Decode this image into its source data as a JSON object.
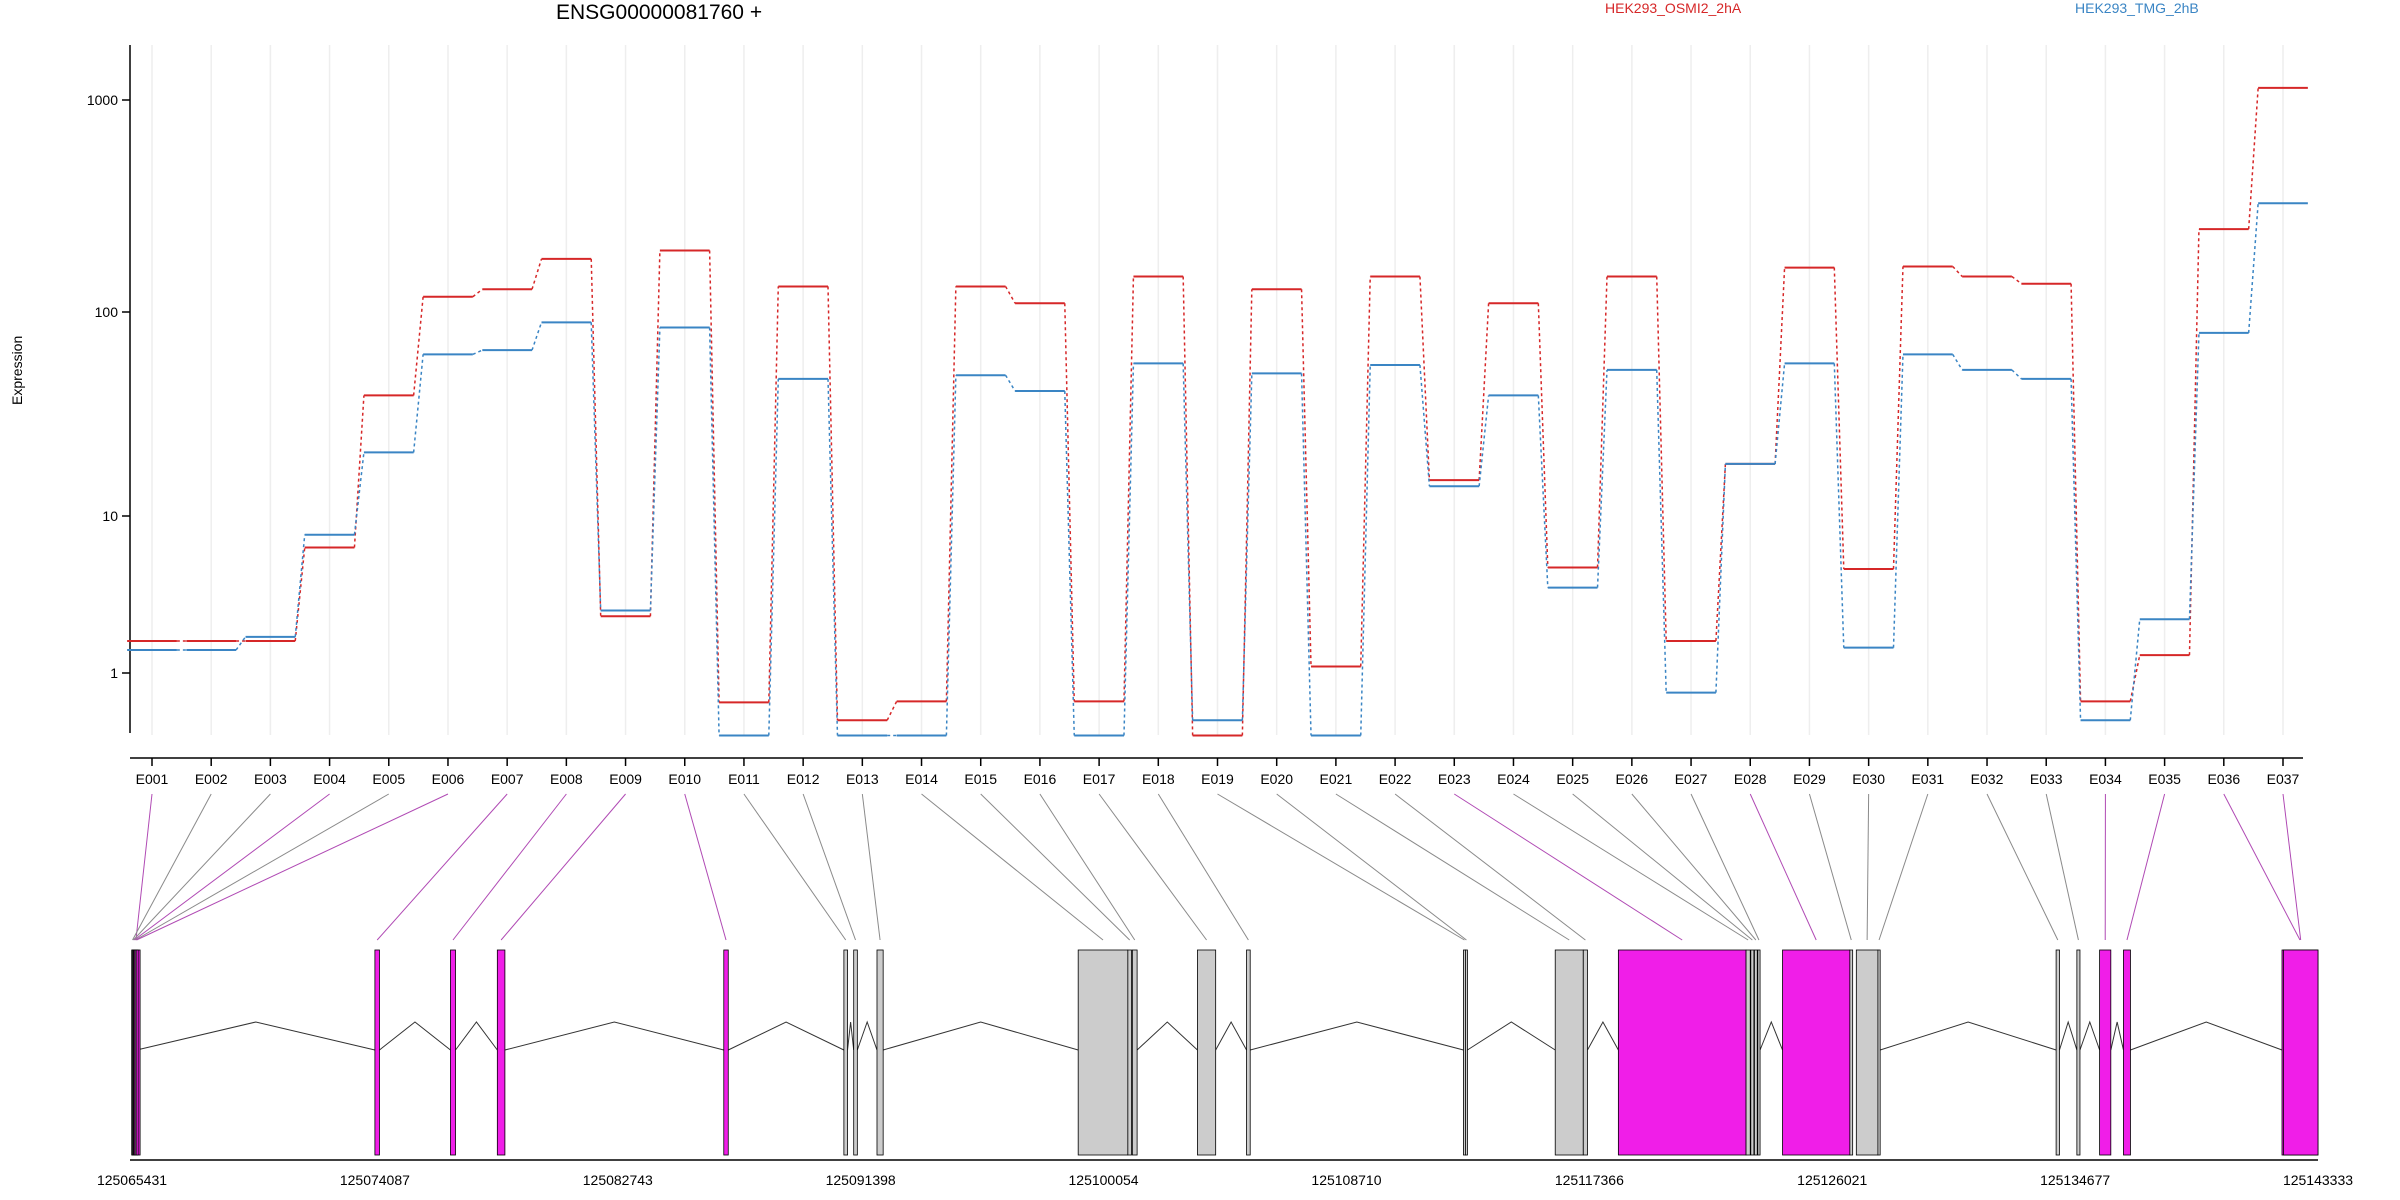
{
  "chart_data": {
    "type": "line",
    "title": "ENSG00000081760 +",
    "ylabel": "Expression",
    "xlabel": "",
    "y_scale": "log",
    "ylim": [
      0.6,
      1600
    ],
    "y_ticks": [
      "1",
      "10",
      "100",
      "1000"
    ],
    "categories": [
      "E001",
      "E002",
      "E003",
      "E004",
      "E005",
      "E006",
      "E007",
      "E008",
      "E009",
      "E010",
      "E011",
      "E012",
      "E013",
      "E014",
      "E015",
      "E016",
      "E017",
      "E018",
      "E019",
      "E020",
      "E021",
      "E022",
      "E023",
      "E024",
      "E025",
      "E026",
      "E027",
      "E028",
      "E029",
      "E030",
      "E031",
      "E032",
      "E033",
      "E034",
      "E035",
      "E036",
      "E037"
    ],
    "series": [
      {
        "name": "HEK293_OSMI2_2hA",
        "color": "#d62728",
        "values": [
          1.6,
          1.6,
          1.6,
          6.3,
          39,
          118,
          128,
          178,
          2.3,
          195,
          0.65,
          132,
          0.5,
          0.66,
          132,
          110,
          0.66,
          147,
          0.4,
          128,
          1.1,
          147,
          15,
          110,
          4.7,
          147,
          1.6,
          18,
          162,
          4.6,
          164,
          147,
          136,
          0.66,
          1.3,
          246,
          1140
        ]
      },
      {
        "name": "HEK293_TMG_2hB",
        "color": "#3a85c4",
        "values": [
          1.4,
          1.4,
          1.7,
          7.6,
          20.5,
          62,
          65,
          89,
          2.5,
          84,
          0.4,
          47,
          0.4,
          0.4,
          49,
          41,
          0.4,
          56,
          0.5,
          50,
          0.4,
          55,
          14,
          39,
          3.5,
          52,
          0.75,
          18,
          56,
          1.45,
          62,
          52,
          47,
          0.5,
          2.2,
          79,
          326
        ]
      }
    ],
    "legend_placement": "top",
    "genome_axis_ticks": [
      "125065431",
      "125074087",
      "125082743",
      "125091398",
      "125100054",
      "125108710",
      "125117366",
      "125126021",
      "125134677",
      "125143333"
    ],
    "genome_range": [
      125065431,
      125143333
    ],
    "exons": [
      {
        "id": "E001",
        "start": 125065420,
        "end": 125065720,
        "highlight": true
      },
      {
        "id": "E002",
        "start": 125065440,
        "end": 125065460,
        "highlight": false
      },
      {
        "id": "E003",
        "start": 125065470,
        "end": 125065490,
        "highlight": false
      },
      {
        "id": "E004",
        "start": 125065500,
        "end": 125065520,
        "highlight": true
      },
      {
        "id": "E005",
        "start": 125065540,
        "end": 125065560,
        "highlight": false
      },
      {
        "id": "E006",
        "start": 125065580,
        "end": 125065600,
        "highlight": true
      },
      {
        "id": "E007",
        "start": 125074087,
        "end": 125074250,
        "highlight": true
      },
      {
        "id": "E008",
        "start": 125076780,
        "end": 125076960,
        "highlight": true
      },
      {
        "id": "E009",
        "start": 125078450,
        "end": 125078720,
        "highlight": true
      },
      {
        "id": "E010",
        "start": 125086520,
        "end": 125086680,
        "highlight": true
      },
      {
        "id": "E011",
        "start": 125090800,
        "end": 125090930,
        "highlight": false
      },
      {
        "id": "E012",
        "start": 125091150,
        "end": 125091280,
        "highlight": false
      },
      {
        "id": "E013",
        "start": 125091980,
        "end": 125092200,
        "highlight": false
      },
      {
        "id": "E014",
        "start": 125099150,
        "end": 125100920,
        "highlight": false
      },
      {
        "id": "E015",
        "start": 125100920,
        "end": 125101050,
        "highlight": false
      },
      {
        "id": "E016",
        "start": 125101080,
        "end": 125101250,
        "highlight": false
      },
      {
        "id": "E017",
        "start": 125103400,
        "end": 125104050,
        "highlight": false
      },
      {
        "id": "E018",
        "start": 125105150,
        "end": 125105280,
        "highlight": false
      },
      {
        "id": "E019",
        "start": 125112880,
        "end": 125112950,
        "highlight": false
      },
      {
        "id": "E020",
        "start": 125112950,
        "end": 125113020,
        "highlight": false
      },
      {
        "id": "E021",
        "start": 125116150,
        "end": 125117150,
        "highlight": false
      },
      {
        "id": "E022",
        "start": 125117150,
        "end": 125117300,
        "highlight": false
      },
      {
        "id": "E023",
        "start": 125118400,
        "end": 125122950,
        "highlight": true
      },
      {
        "id": "E024",
        "start": 125122950,
        "end": 125123100,
        "highlight": false
      },
      {
        "id": "E025",
        "start": 125123120,
        "end": 125123230,
        "highlight": false
      },
      {
        "id": "E026",
        "start": 125123250,
        "end": 125123350,
        "highlight": false
      },
      {
        "id": "E027",
        "start": 125123370,
        "end": 125123450,
        "highlight": false
      },
      {
        "id": "E028",
        "start": 125124250,
        "end": 125126650,
        "highlight": true
      },
      {
        "id": "E029",
        "start": 125126650,
        "end": 125126750,
        "highlight": false
      },
      {
        "id": "E030",
        "start": 125126880,
        "end": 125127650,
        "highlight": false
      },
      {
        "id": "E031",
        "start": 125127650,
        "end": 125127730,
        "highlight": false
      },
      {
        "id": "E032",
        "start": 125134000,
        "end": 125134120,
        "highlight": false
      },
      {
        "id": "E033",
        "start": 125134740,
        "end": 125134850,
        "highlight": false
      },
      {
        "id": "E034",
        "start": 125135550,
        "end": 125135950,
        "highlight": true
      },
      {
        "id": "E035",
        "start": 125136400,
        "end": 125136650,
        "highlight": true
      },
      {
        "id": "E036",
        "start": 125142050,
        "end": 125143333,
        "highlight": true
      },
      {
        "id": "E037",
        "start": 125142100,
        "end": 125143333,
        "highlight": true
      }
    ],
    "exon_fill_colors": {
      "highlight": "#f01ee8",
      "normal": "#cccccc"
    },
    "connector_colors": {
      "highlight": "#b04ab4",
      "normal": "#8a8a8a"
    }
  }
}
